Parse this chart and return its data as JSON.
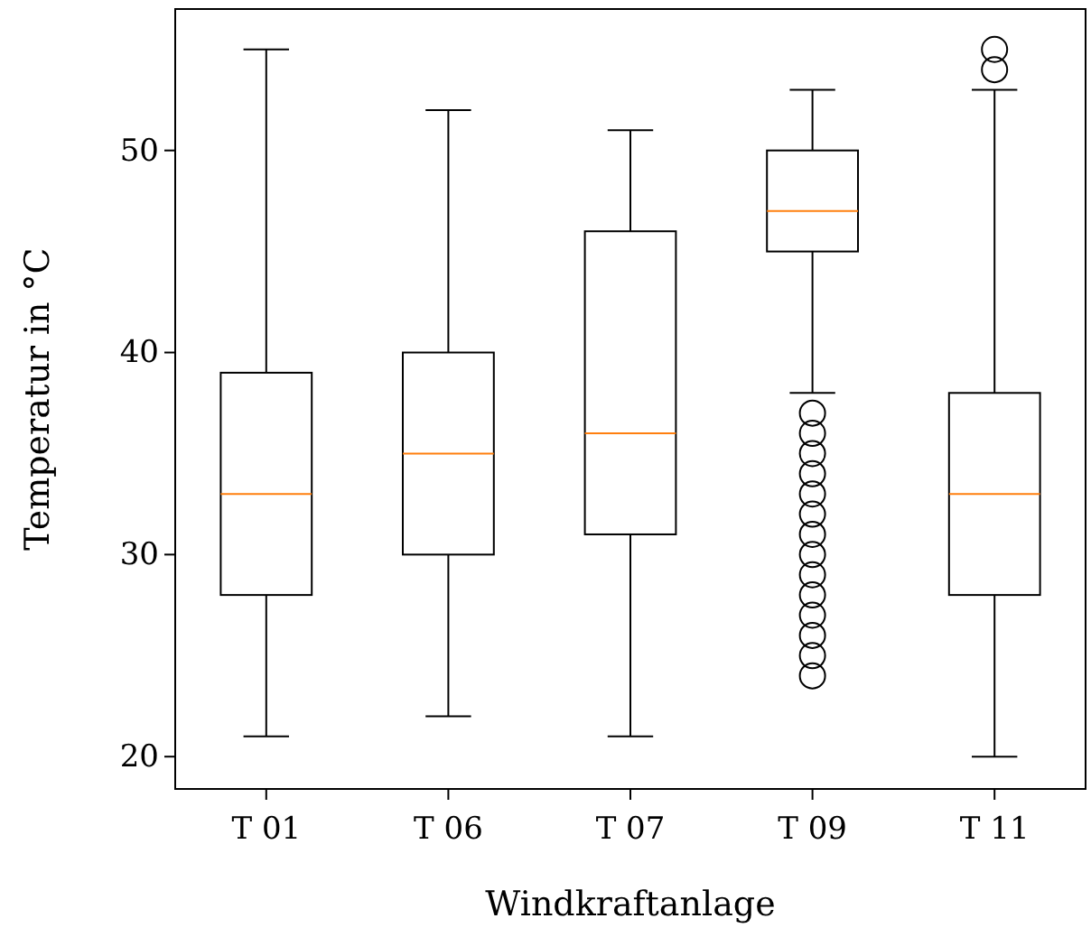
{
  "chart_data": {
    "type": "box",
    "xlabel": "Windkraftanlage",
    "ylabel": "Temperatur in °C",
    "categories": [
      "T 01",
      "T 06",
      "T 07",
      "T 09",
      "T 11"
    ],
    "boxes": [
      {
        "low": 21,
        "q1": 28,
        "median": 33,
        "q3": 39,
        "high": 55
      },
      {
        "low": 22,
        "q1": 30,
        "median": 35,
        "q3": 40,
        "high": 52
      },
      {
        "low": 21,
        "q1": 31,
        "median": 36,
        "q3": 46,
        "high": 51
      },
      {
        "low": 38,
        "q1": 45,
        "median": 47,
        "q3": 50,
        "high": 53,
        "outliers": [
          24,
          25,
          26,
          27,
          28,
          29,
          30,
          31,
          32,
          33,
          34,
          35,
          36,
          37
        ]
      },
      {
        "low": 20,
        "q1": 28,
        "median": 33,
        "q3": 38,
        "high": 53,
        "outliers": [
          54,
          55
        ]
      }
    ],
    "color": "#000000",
    "ylim": [
      18.4,
      57
    ],
    "yticks": [
      20,
      30,
      40,
      50
    ]
  }
}
